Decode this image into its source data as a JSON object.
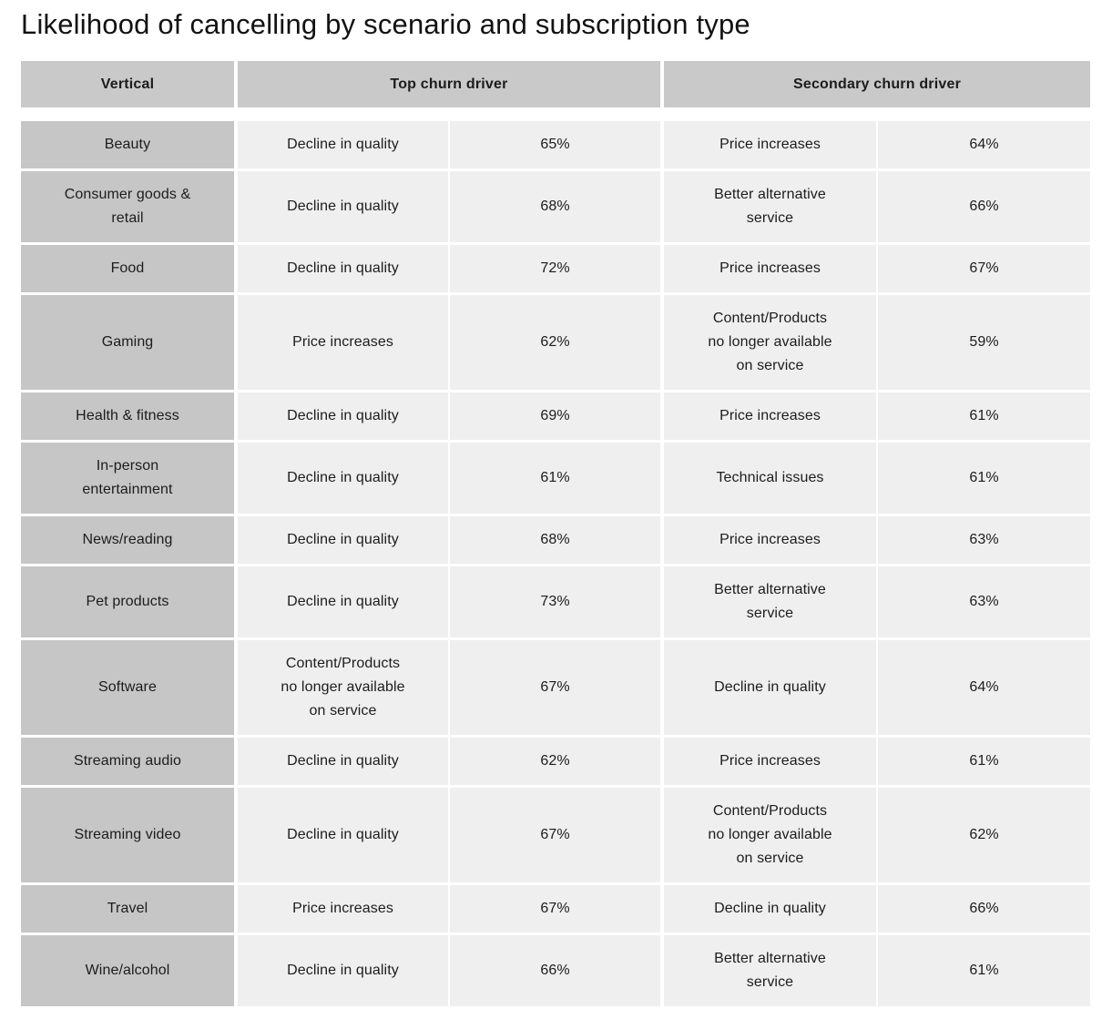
{
  "title": "Likelihood of cancelling by scenario and subscription type",
  "colors": {
    "header_bg": "#c9c9c9",
    "vertical_column_bg": "#c6c6c6",
    "data_cell_bg": "#efefef",
    "text": "#1c1c1c",
    "page_bg": "#ffffff"
  },
  "table": {
    "headers": [
      "Vertical",
      "Top churn driver",
      "Secondary churn driver"
    ],
    "rows": [
      {
        "vertical": "Beauty",
        "top_driver": "Decline in quality",
        "top_pct": "65%",
        "secondary_driver": "Price increases",
        "secondary_pct": "64%"
      },
      {
        "vertical": "Consumer goods &\nretail",
        "top_driver": "Decline in quality",
        "top_pct": "68%",
        "secondary_driver": "Better alternative\nservice",
        "secondary_pct": "66%"
      },
      {
        "vertical": "Food",
        "top_driver": "Decline in quality",
        "top_pct": "72%",
        "secondary_driver": "Price increases",
        "secondary_pct": "67%"
      },
      {
        "vertical": "Gaming",
        "top_driver": "Price increases",
        "top_pct": "62%",
        "secondary_driver": "Content/Products\nno longer available\non service",
        "secondary_pct": "59%"
      },
      {
        "vertical": "Health & fitness",
        "top_driver": "Decline in quality",
        "top_pct": "69%",
        "secondary_driver": "Price increases",
        "secondary_pct": "61%"
      },
      {
        "vertical": "In-person\nentertainment",
        "top_driver": "Decline in quality",
        "top_pct": "61%",
        "secondary_driver": "Technical issues",
        "secondary_pct": "61%"
      },
      {
        "vertical": "News/reading",
        "top_driver": "Decline in quality",
        "top_pct": "68%",
        "secondary_driver": "Price increases",
        "secondary_pct": "63%"
      },
      {
        "vertical": "Pet products",
        "top_driver": "Decline in quality",
        "top_pct": "73%",
        "secondary_driver": "Better alternative\nservice",
        "secondary_pct": "63%"
      },
      {
        "vertical": "Software",
        "top_driver": "Content/Products\nno longer available\non service",
        "top_pct": "67%",
        "secondary_driver": "Decline in quality",
        "secondary_pct": "64%"
      },
      {
        "vertical": "Streaming audio",
        "top_driver": "Decline in quality",
        "top_pct": "62%",
        "secondary_driver": "Price increases",
        "secondary_pct": "61%"
      },
      {
        "vertical": "Streaming video",
        "top_driver": "Decline in quality",
        "top_pct": "67%",
        "secondary_driver": "Content/Products\nno longer available\non service",
        "secondary_pct": "62%"
      },
      {
        "vertical": "Travel",
        "top_driver": "Price increases",
        "top_pct": "67%",
        "secondary_driver": "Decline in quality",
        "secondary_pct": "66%"
      },
      {
        "vertical": "Wine/alcohol",
        "top_driver": "Decline in quality",
        "top_pct": "66%",
        "secondary_driver": "Better alternative\nservice",
        "secondary_pct": "61%"
      }
    ]
  },
  "chart_data": {
    "type": "table",
    "title": "Likelihood of cancelling by scenario and subscription type",
    "columns": [
      "Vertical",
      "Top churn driver",
      "Top churn driver %",
      "Secondary churn driver",
      "Secondary churn driver %"
    ],
    "rows": [
      [
        "Beauty",
        "Decline in quality",
        65,
        "Price increases",
        64
      ],
      [
        "Consumer goods & retail",
        "Decline in quality",
        68,
        "Better alternative service",
        66
      ],
      [
        "Food",
        "Decline in quality",
        72,
        "Price increases",
        67
      ],
      [
        "Gaming",
        "Price increases",
        62,
        "Content/Products no longer available on service",
        59
      ],
      [
        "Health & fitness",
        "Decline in quality",
        69,
        "Price increases",
        61
      ],
      [
        "In-person entertainment",
        "Decline in quality",
        61,
        "Technical issues",
        61
      ],
      [
        "News/reading",
        "Decline in quality",
        68,
        "Price increases",
        63
      ],
      [
        "Pet products",
        "Decline in quality",
        73,
        "Better alternative service",
        63
      ],
      [
        "Software",
        "Content/Products no longer available on service",
        67,
        "Decline in quality",
        64
      ],
      [
        "Streaming audio",
        "Decline in quality",
        62,
        "Price increases",
        61
      ],
      [
        "Streaming video",
        "Decline in quality",
        67,
        "Content/Products no longer available on service",
        62
      ],
      [
        "Travel",
        "Price increases",
        67,
        "Decline in quality",
        66
      ],
      [
        "Wine/alcohol",
        "Decline in quality",
        66,
        "Better alternative service",
        61
      ]
    ]
  }
}
